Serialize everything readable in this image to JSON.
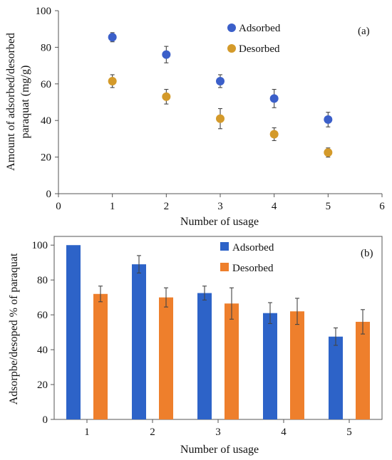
{
  "chart_data": [
    {
      "type": "scatter",
      "panel_label": "(a)",
      "xlabel": "Number of usage",
      "ylabel_line1": "Amount of adsorbed/desorbed",
      "ylabel_line2": "paraquat (mg/g)",
      "xlim": [
        0,
        6
      ],
      "ylim": [
        0,
        100
      ],
      "xticks": [
        0,
        1,
        2,
        3,
        4,
        5,
        6
      ],
      "yticks": [
        0,
        20,
        40,
        60,
        80,
        100
      ],
      "grid": false,
      "legend_position": "top-right",
      "series": [
        {
          "name": "Adsorbed",
          "color": "#3b5fc9",
          "x": [
            1,
            2,
            3,
            4,
            5
          ],
          "y": [
            85.5,
            76,
            61.5,
            52,
            40.5
          ],
          "err": [
            2.5,
            4.5,
            3.5,
            5,
            4
          ]
        },
        {
          "name": "Desorbed",
          "color": "#d49a2a",
          "x": [
            1,
            2,
            3,
            4,
            5
          ],
          "y": [
            61.5,
            53,
            41,
            32.5,
            22.5
          ],
          "err": [
            3.5,
            4,
            5.5,
            3.5,
            2.5
          ]
        }
      ]
    },
    {
      "type": "bar",
      "panel_label": "(b)",
      "xlabel": "Number of usage",
      "ylabel": "Adsorpbe/desoped % of paraquat",
      "categories": [
        "1",
        "2",
        "3",
        "4",
        "5"
      ],
      "ylim": [
        0,
        105
      ],
      "yticks": [
        0,
        20,
        40,
        60,
        80,
        100
      ],
      "grid": false,
      "legend_position": "top-right",
      "series": [
        {
          "name": "Adsorbed",
          "color": "#2d63c8",
          "values": [
            100,
            89,
            72.5,
            61,
            47.5
          ],
          "err": [
            0,
            5,
            4,
            6,
            5
          ]
        },
        {
          "name": "Desorbed",
          "color": "#ee7f2c",
          "values": [
            72,
            70,
            66.5,
            62,
            56
          ],
          "err": [
            4.5,
            5.5,
            9,
            7.5,
            7
          ]
        }
      ]
    }
  ]
}
